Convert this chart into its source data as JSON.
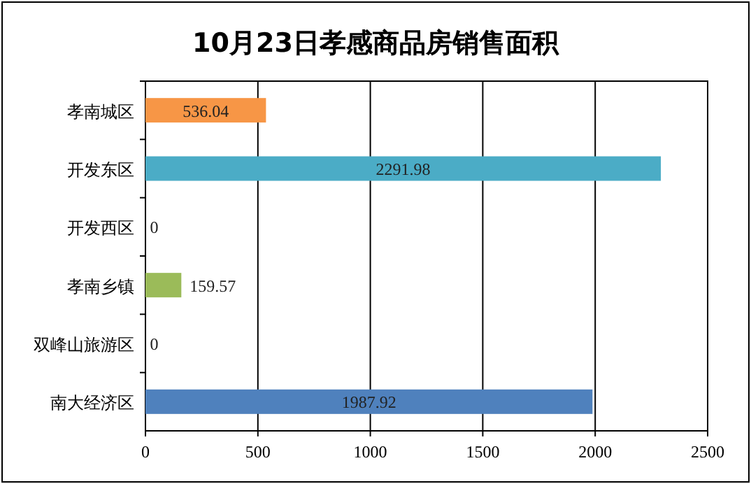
{
  "chart_data": {
    "type": "bar",
    "orientation": "horizontal",
    "title": "10月23日孝感商品房销售面积",
    "categories": [
      "孝南城区",
      "开发东区",
      "开发西区",
      "孝南乡镇",
      "双峰山旅游区",
      "南大经济区"
    ],
    "values": [
      536.04,
      2291.98,
      0,
      159.57,
      0,
      1987.92
    ],
    "colors": [
      "#f79646",
      "#4bacc6",
      "#8064a2",
      "#9bbb59",
      "#c0504d",
      "#4f81bd"
    ],
    "xlim": [
      0,
      2500
    ],
    "xticks": [
      0,
      500,
      1000,
      1500,
      2000,
      2500
    ],
    "grid": "x",
    "data_labels": true
  }
}
